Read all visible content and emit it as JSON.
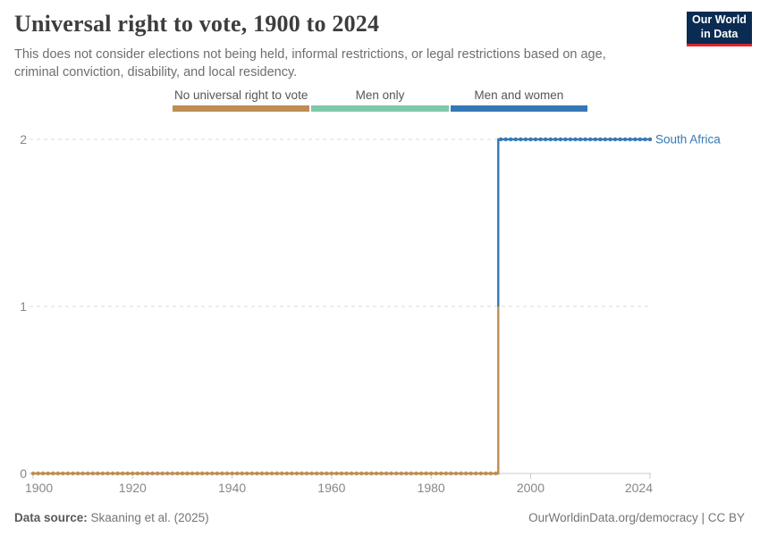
{
  "header": {
    "title": "Universal right to vote, 1900 to 2024",
    "subtitle": "This does not consider elections not being held, informal restrictions, or legal restrictions based on age, criminal conviction, disability, and local residency.",
    "logo": {
      "line1": "Our World",
      "line2": "in Data",
      "bg_color": "#0A2B52",
      "accent_color": "#E0232D"
    }
  },
  "chart_data": {
    "type": "line",
    "title": "Universal right to vote, 1900 to 2024",
    "xlabel": "",
    "ylabel": "",
    "xlim": [
      1900,
      2024
    ],
    "ylim": [
      0,
      2
    ],
    "x_ticks": [
      1900,
      1920,
      1940,
      1960,
      1980,
      2000,
      2024
    ],
    "y_ticks": [
      0,
      1,
      2
    ],
    "grid": "dashed horizontal gridlines at y=1 and y=2, solid axis line at y=0",
    "legend_position": "top-center",
    "marker": "circle at every year",
    "categories": [
      {
        "value": 0,
        "label": "No universal right to vote",
        "color": "#BE8E55"
      },
      {
        "value": 1,
        "label": "Men only",
        "color": "#7FC8AA"
      },
      {
        "value": 2,
        "label": "Men and women",
        "color": "#3578B5"
      }
    ],
    "series": [
      {
        "entity": "South Africa",
        "label_color": "#3578B5",
        "segments": [
          {
            "start_year": 1900,
            "end_year": 1993,
            "value": 0,
            "category": "No universal right to vote",
            "color": "#BE8E55"
          },
          {
            "start_year": 1994,
            "end_year": 2024,
            "value": 2,
            "category": "Men and women",
            "color": "#3578B5"
          }
        ]
      }
    ],
    "colors": {
      "grid_line": "#D8D8D8",
      "axis_line": "#CBCBCB",
      "tick_label": "#878787"
    }
  },
  "footer": {
    "data_source_label": "Data source:",
    "data_source_value": "Skaaning et al. (2025)",
    "license": "OurWorldinData.org/democracy | CC BY"
  }
}
